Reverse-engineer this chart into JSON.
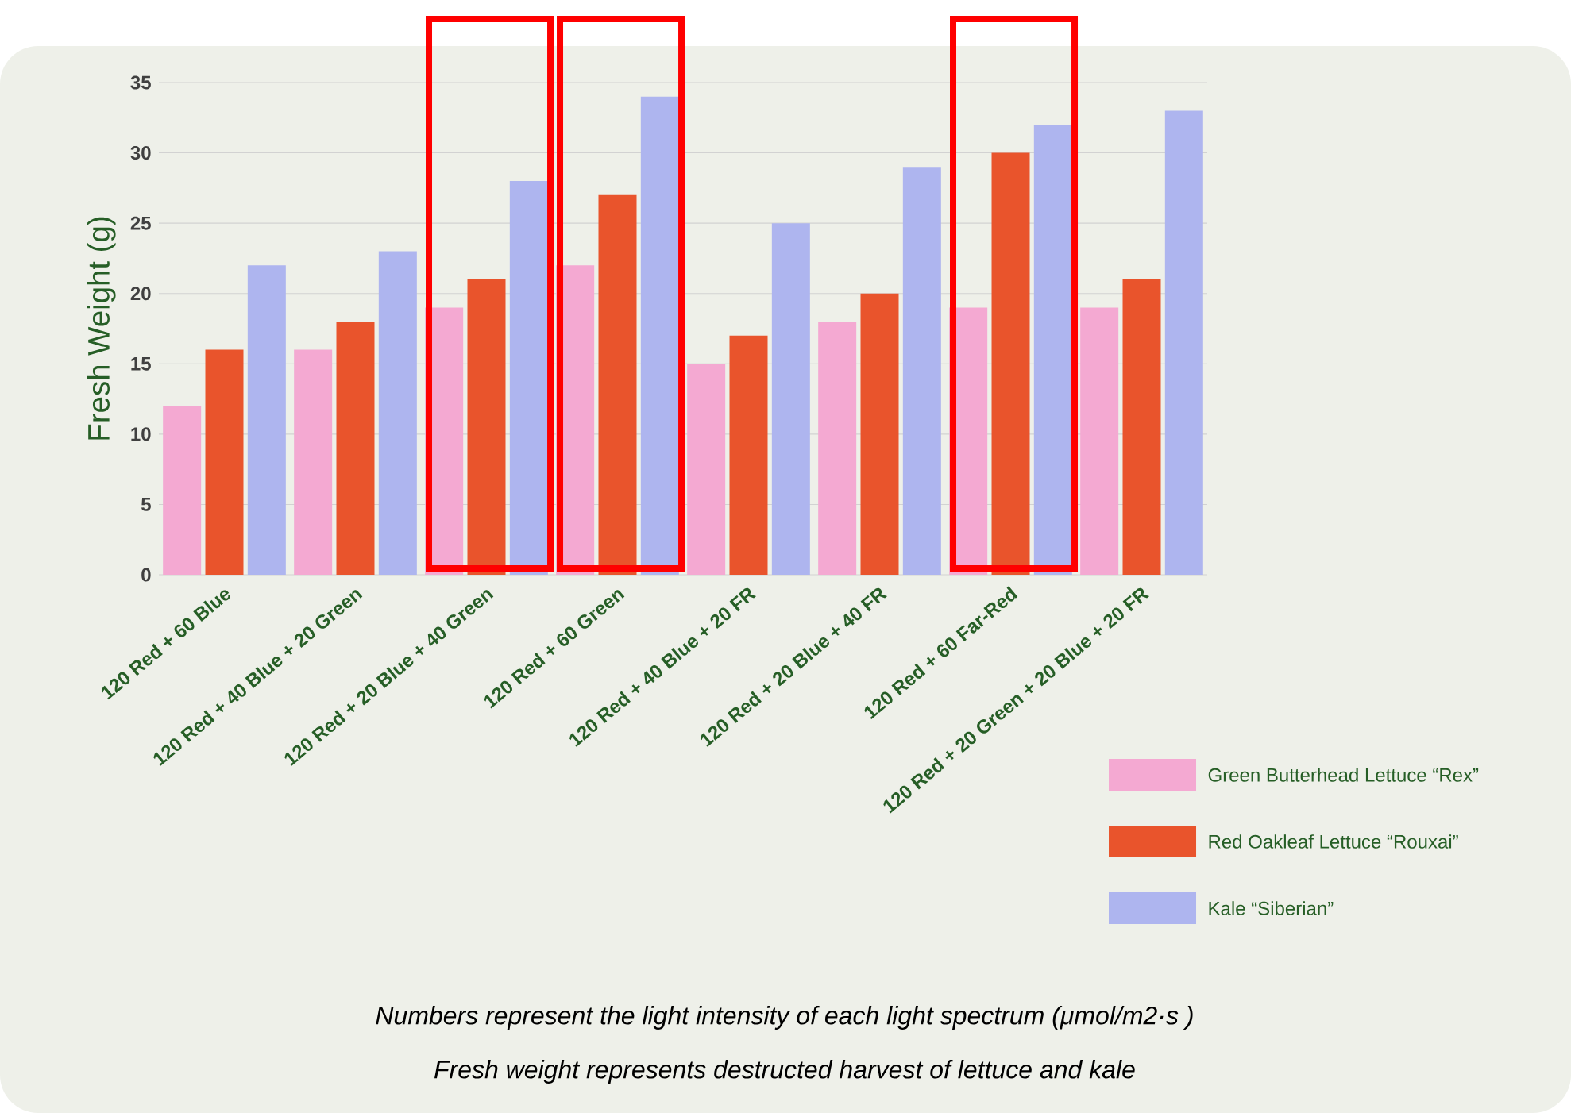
{
  "chart_data": {
    "type": "bar",
    "ylabel": "Fresh Weight (g)",
    "categories": [
      "120 Red + 60 Blue",
      "120 Red + 40 Blue + 20 Green",
      "120 Red + 20 Blue + 40 Green",
      "120 Red + 60 Green",
      "120 Red + 40 Blue + 20 FR",
      "120 Red + 20 Blue + 40 FR",
      "120 Red + 60 Far-Red",
      "120 Red + 20 Green + 20 Blue + 20 FR"
    ],
    "series": [
      {
        "name": "Green Butterhead Lettuce “Rex”",
        "color": "#f4a9d2",
        "values": [
          12,
          16,
          19,
          22,
          15,
          18,
          19,
          19
        ]
      },
      {
        "name": "Red Oakleaf Lettuce  “Rouxai”",
        "color": "#e9542c",
        "values": [
          16,
          18,
          21,
          27,
          17,
          20,
          30,
          21
        ]
      },
      {
        "name": "Kale “Siberian”",
        "color": "#aeb5ef",
        "values": [
          22,
          23,
          28,
          34,
          25,
          29,
          32,
          33
        ]
      }
    ],
    "ylim": [
      0,
      35
    ],
    "yticks": [
      0,
      5,
      10,
      15,
      20,
      25,
      30,
      35
    ],
    "grid": "y",
    "legend": "bottom right",
    "annotations": [
      "Numbers represent the light intensity of each light spectrum (μmol/m2·s )",
      "Fresh weight represents destructed harvest of lettuce and kale"
    ]
  }
}
